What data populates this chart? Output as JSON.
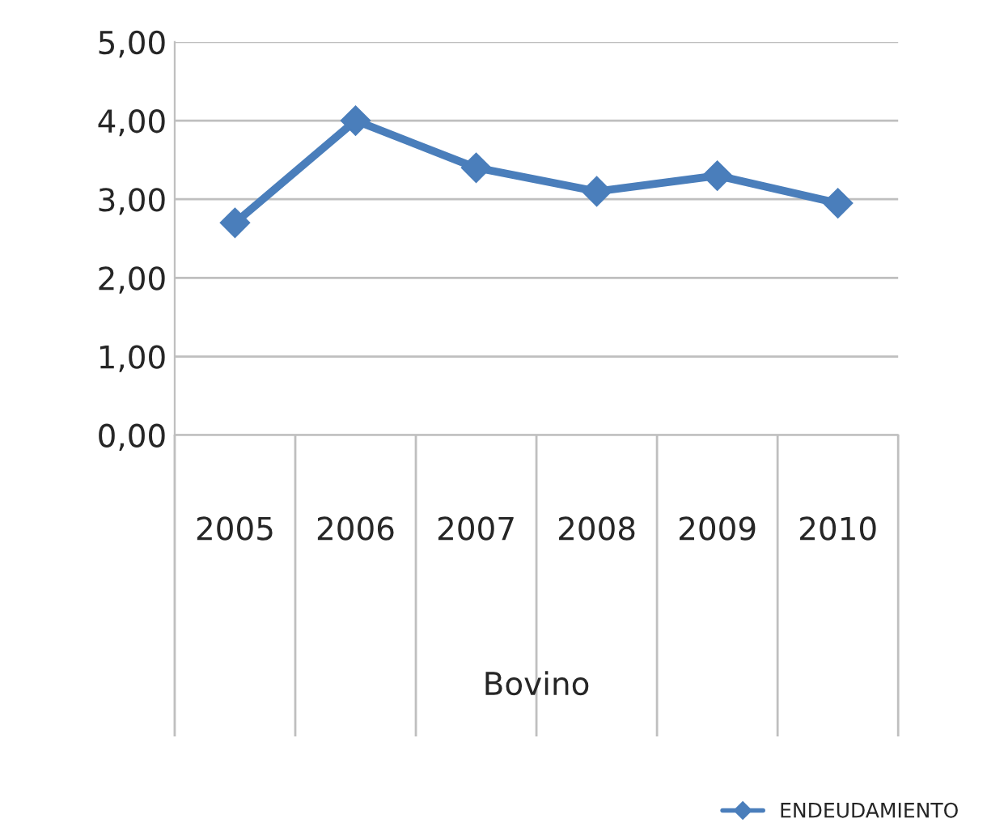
{
  "chart_data": {
    "type": "line",
    "xlabel": "Bovino",
    "categories": [
      "2005",
      "2006",
      "2007",
      "2008",
      "2009",
      "2010"
    ],
    "series": [
      {
        "name": "ENDEUDAMIENTO",
        "color": "#4a7ebb",
        "values": [
          2.7,
          4.0,
          3.4,
          3.1,
          3.3,
          2.95
        ]
      }
    ],
    "ylim": [
      0,
      5
    ],
    "yticks": [
      {
        "value": 0,
        "label": "0,00"
      },
      {
        "value": 1,
        "label": "1,00"
      },
      {
        "value": 2,
        "label": "2,00"
      },
      {
        "value": 3,
        "label": "3,00"
      },
      {
        "value": 4,
        "label": "4,00"
      },
      {
        "value": 5,
        "label": "5,00"
      }
    ],
    "grid": "y",
    "legend": "bottom right",
    "marker": "diamond",
    "line_style": "solid"
  }
}
